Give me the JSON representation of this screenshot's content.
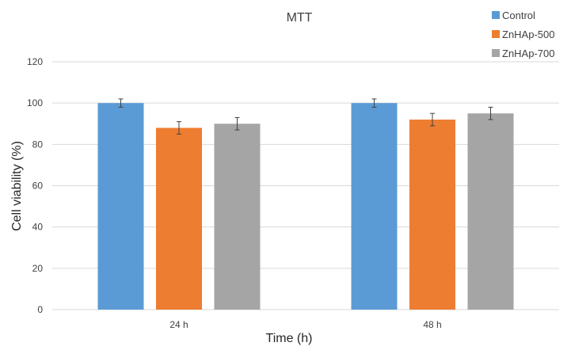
{
  "chart_data": {
    "type": "bar",
    "title": "MTT",
    "xlabel": "Time (h)",
    "ylabel": "Cell viability (%)",
    "categories": [
      "24 h",
      "48 h"
    ],
    "ylim": [
      0,
      120
    ],
    "yticks": [
      0,
      20,
      40,
      60,
      80,
      100,
      120
    ],
    "grid": true,
    "legend_position": "top-right",
    "series": [
      {
        "name": "Control",
        "color": "#5b9bd5",
        "values": [
          100,
          100
        ],
        "errors": [
          2,
          2
        ]
      },
      {
        "name": "ZnHAp-500",
        "color": "#ed7d31",
        "values": [
          88,
          92
        ],
        "errors": [
          3,
          3
        ]
      },
      {
        "name": "ZnHAp-700",
        "color": "#a5a5a5",
        "values": [
          90,
          95
        ],
        "errors": [
          3,
          3
        ]
      }
    ]
  }
}
